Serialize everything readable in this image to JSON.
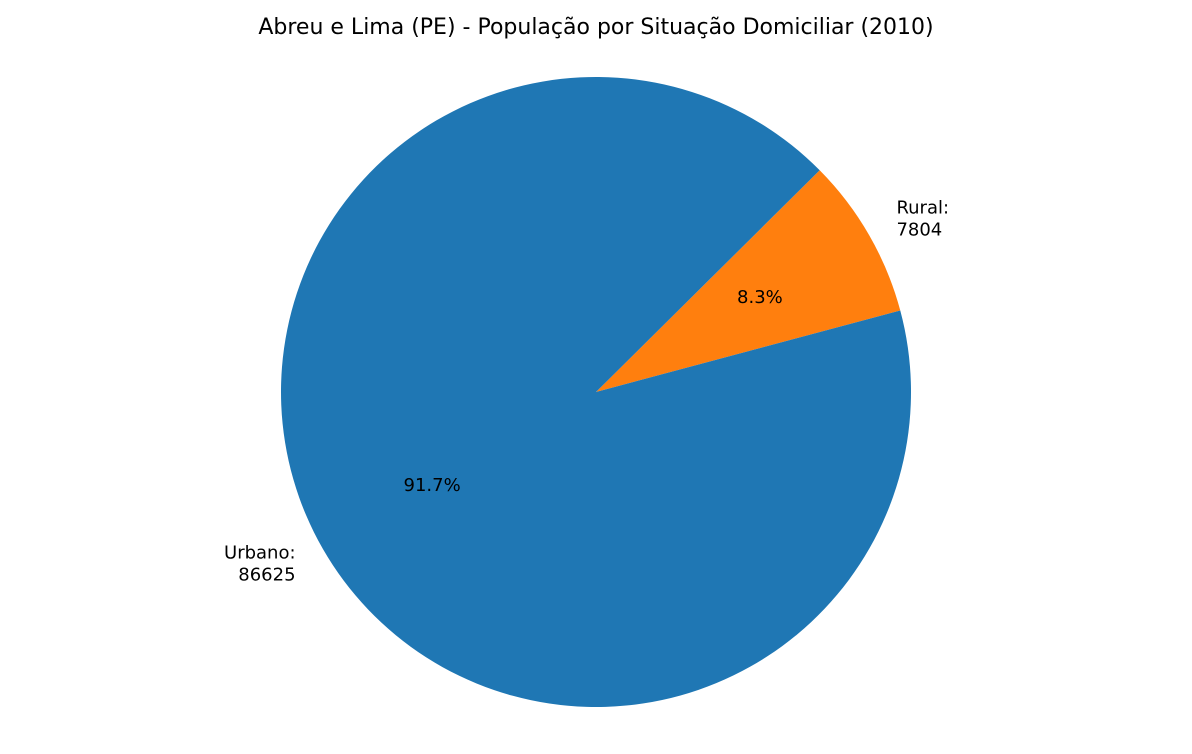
{
  "chart_data": {
    "type": "pie",
    "title": "Abreu e Lima (PE) - População por Situação Domiciliar (2010)",
    "slices": [
      {
        "name": "Rural",
        "value": 7804,
        "percent_label": "8.3%",
        "label_lines": [
          "Rural:",
          "7804"
        ],
        "color": "#ff7f0e"
      },
      {
        "name": "Urbano",
        "value": 86625,
        "percent_label": "91.7%",
        "label_lines": [
          "Urbano:",
          "86625"
        ],
        "color": "#1f77b4"
      }
    ]
  }
}
